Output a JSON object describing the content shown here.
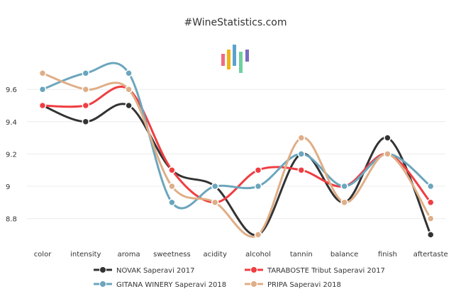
{
  "chart_data": {
    "type": "line",
    "title": "#WineStatistics.com",
    "categories": [
      "color",
      "intensity",
      "aroma",
      "sweetness",
      "acidity",
      "alcohol",
      "tannin",
      "balance",
      "finish",
      "aftertaste"
    ],
    "y_ticks": [
      "8.8",
      "9",
      "9.2",
      "9.4",
      "9.6"
    ],
    "ylim": [
      8.67,
      9.78
    ],
    "grid": true,
    "legend_position": "bottom",
    "series": [
      {
        "name": "NOVAK Saperavi 2017",
        "color": "#333333",
        "values": [
          9.5,
          9.4,
          9.5,
          9.1,
          9.0,
          8.7,
          9.2,
          8.9,
          9.3,
          8.7
        ]
      },
      {
        "name": "TARABOSTE Tribut Saperavi 2017",
        "color": "#ef3e42",
        "values": [
          9.5,
          9.5,
          9.6,
          9.1,
          8.9,
          9.1,
          9.1,
          9.0,
          9.2,
          8.9
        ]
      },
      {
        "name": "GITANA WINERY Saperavi 2018",
        "color": "#6ba6bd",
        "values": [
          9.6,
          9.7,
          9.7,
          8.9,
          9.0,
          9.0,
          9.2,
          9.0,
          9.2,
          9.0
        ]
      },
      {
        "name": "PRIPA Saperavi 2018",
        "color": "#dfae87",
        "values": [
          9.7,
          9.6,
          9.6,
          9.0,
          8.9,
          8.7,
          9.3,
          8.9,
          9.2,
          8.8
        ]
      }
    ]
  },
  "logo": {
    "name": "bar-logo-icon",
    "bar_colors": [
      "#f06b84",
      "#f2b411",
      "#5ba3cf",
      "#6fd0a0",
      "#7c6bbf"
    ]
  }
}
